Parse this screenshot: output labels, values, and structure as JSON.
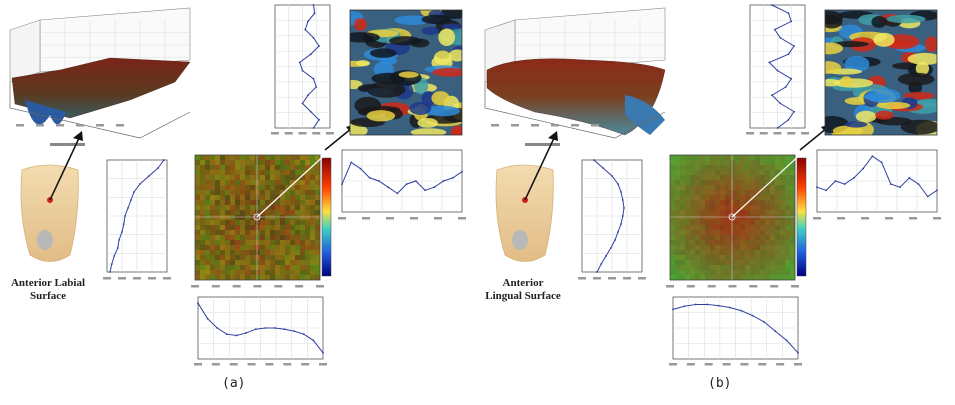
{
  "panels": [
    {
      "label": "(a)",
      "surface_name": "Anterior Labial Surface"
    },
    {
      "label": "(b)",
      "surface_name": "Anterior Lingual Surface"
    }
  ]
}
